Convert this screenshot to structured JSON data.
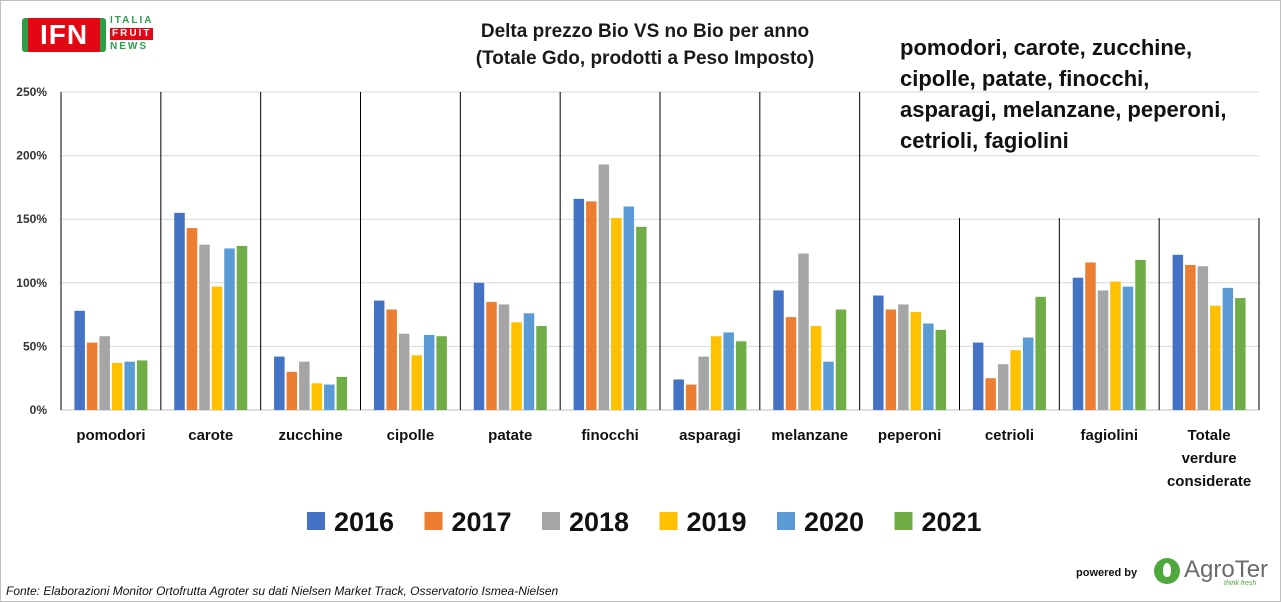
{
  "logo": {
    "abbrev": "IFN",
    "line1": "ITALIA",
    "line2": "FRUIT",
    "line3": "NEWS"
  },
  "chart_title_line1": "Delta prezzo Bio VS no Bio per anno",
  "chart_title_line2": "(Totale Gdo, prodotti a Peso Imposto)",
  "product_list": [
    "pomodori, carote, zucchine,",
    "cipolle, patate, finocchi,",
    "asparagi, melanzane, peperoni,",
    "cetrioli, fagiolini"
  ],
  "source_note": "Fonte: Elaborazioni Monitor Ortofrutta Agroter su dati Nielsen Market Track, Osservatorio Ismea-Nielsen",
  "powered_by": "powered by",
  "agroter": {
    "name": "AgroTer",
    "tagline": "think fresh"
  },
  "colors": {
    "2016": "#4472c4",
    "2017": "#ed7d31",
    "2018": "#a5a5a5",
    "2019": "#ffc000",
    "2020": "#5b9bd5",
    "2021": "#70ad47",
    "gridline": "#d9d9d9",
    "separator": "#000000"
  },
  "chart_data": {
    "type": "bar",
    "title": "Delta prezzo Bio VS no Bio per anno (Totale Gdo, prodotti a Peso Imposto)",
    "categories": [
      [
        "pomodori"
      ],
      [
        "carote"
      ],
      [
        "zucchine"
      ],
      [
        "cipolle"
      ],
      [
        "patate"
      ],
      [
        "finocchi"
      ],
      [
        "asparagi"
      ],
      [
        "melanzane"
      ],
      [
        "peperoni"
      ],
      [
        "cetrioli"
      ],
      [
        "fagiolini"
      ],
      [
        "Totale",
        "verdure",
        "considerate"
      ]
    ],
    "yticks": [
      "0%",
      "50%",
      "100%",
      "150%",
      "200%",
      "250%"
    ],
    "ylim": [
      0,
      250
    ],
    "yunit": "%",
    "grid": true,
    "legend": "bottom",
    "series": [
      {
        "name": "2016",
        "values": [
          78,
          155,
          42,
          86,
          100,
          166,
          24,
          94,
          90,
          53,
          104,
          122
        ]
      },
      {
        "name": "2017",
        "values": [
          53,
          143,
          30,
          79,
          85,
          164,
          20,
          73,
          79,
          25,
          116,
          114
        ]
      },
      {
        "name": "2018",
        "values": [
          58,
          130,
          38,
          60,
          83,
          193,
          42,
          123,
          83,
          36,
          94,
          113
        ]
      },
      {
        "name": "2019",
        "values": [
          37,
          97,
          21,
          43,
          69,
          151,
          58,
          66,
          77,
          47,
          101,
          82
        ]
      },
      {
        "name": "2020",
        "values": [
          38,
          127,
          20,
          59,
          76,
          160,
          61,
          38,
          68,
          57,
          97,
          96
        ]
      },
      {
        "name": "2021",
        "values": [
          39,
          129,
          26,
          58,
          66,
          144,
          54,
          79,
          63,
          89,
          118,
          88
        ]
      }
    ]
  }
}
